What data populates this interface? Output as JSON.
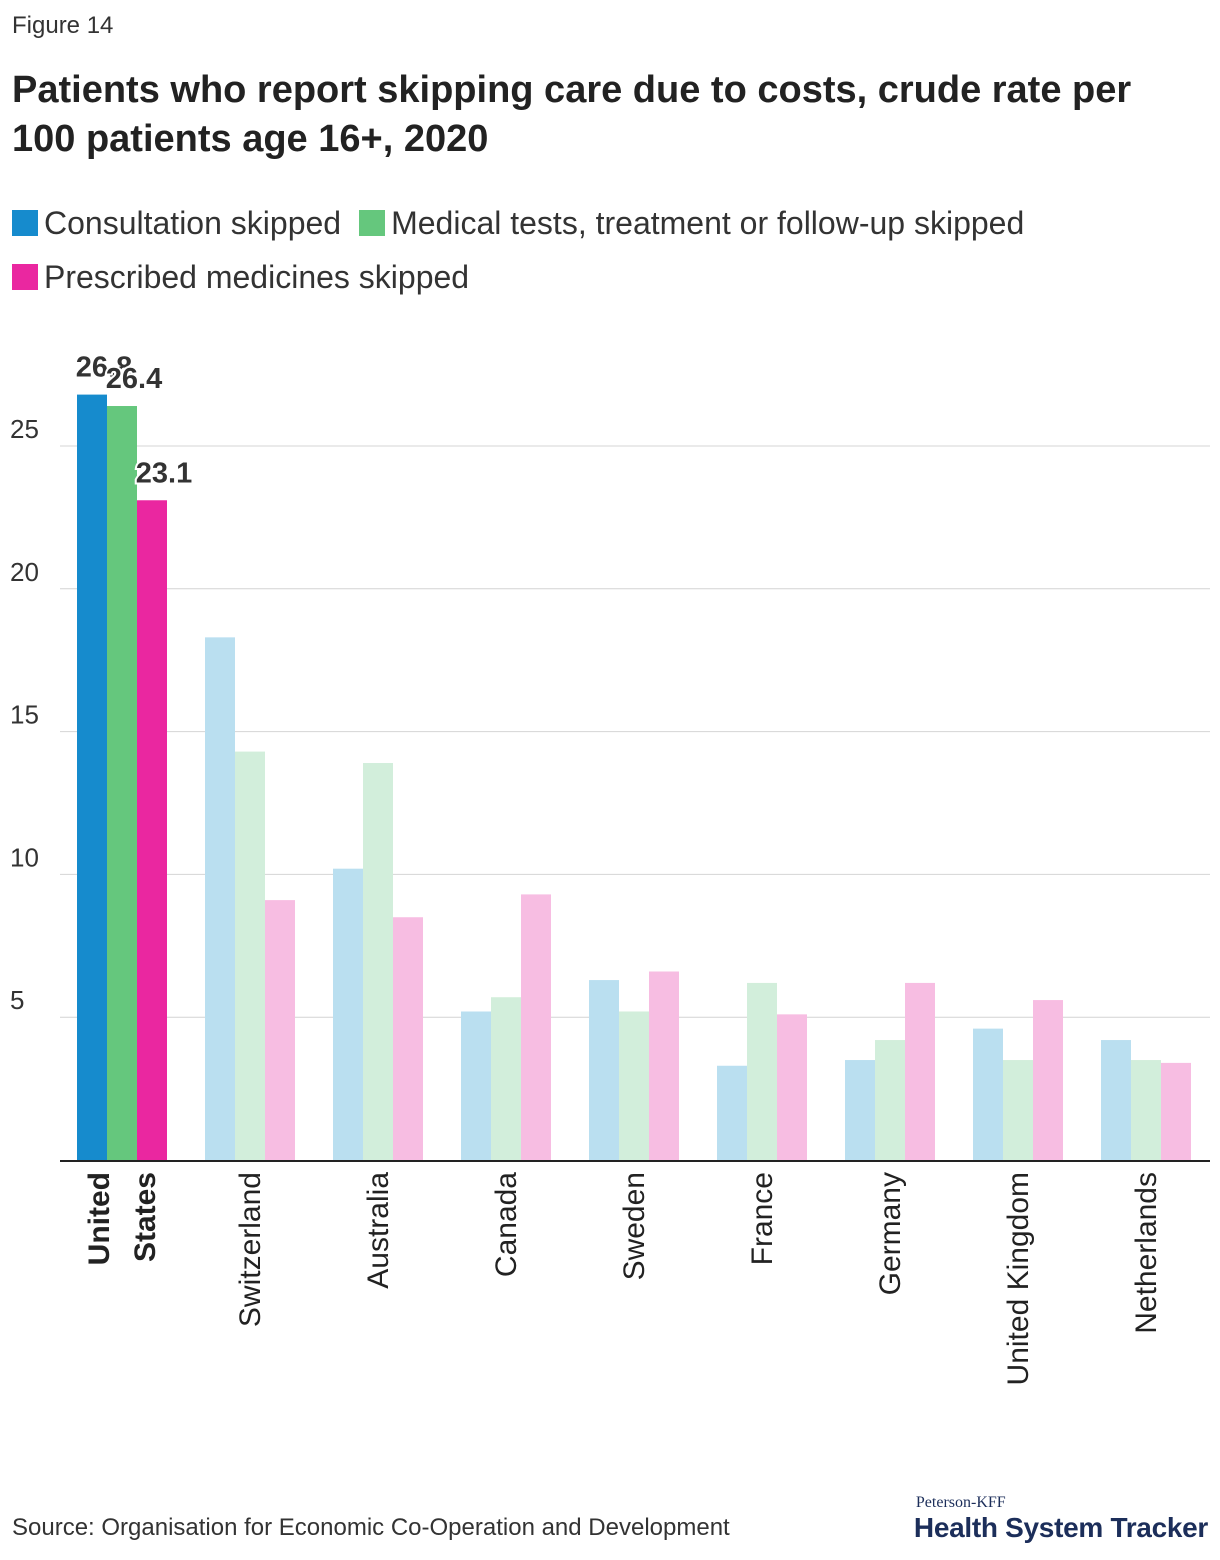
{
  "figure_label": "Figure 14",
  "title": "Patients who report skipping care due to costs, crude rate per 100 patients age 16+, 2020",
  "colors": {
    "consultation": "#168bcd",
    "tests": "#65c77d",
    "medicines": "#ea27a0",
    "consultation_faded": "#badff0",
    "tests_faded": "#d2eedb",
    "medicines_faded": "#f7bde2",
    "gridline": "#d4d4d4",
    "axis": "#222222"
  },
  "source": "Source: Organisation for Economic Co-Operation and Development",
  "logo": {
    "small": "Peterson-KFF",
    "big": "Health System Tracker"
  },
  "chart_data": {
    "type": "bar",
    "title": "Patients who report skipping care due to costs, crude rate per 100 patients age 16+, 2020",
    "xlabel": "",
    "ylabel": "",
    "ylim": [
      0,
      28
    ],
    "yticks": [
      5,
      10,
      15,
      20,
      25
    ],
    "grid": true,
    "legend_position": "top",
    "highlighted_category": "United States",
    "categories": [
      "United States",
      "Switzerland",
      "Australia",
      "Canada",
      "Sweden",
      "France",
      "Germany",
      "United Kingdom",
      "Netherlands"
    ],
    "series": [
      {
        "name": "Consultation skipped",
        "color_key": "consultation",
        "values": [
          26.8,
          18.3,
          10.2,
          5.2,
          6.3,
          3.3,
          3.5,
          4.6,
          4.2
        ]
      },
      {
        "name": "Medical tests, treatment or follow-up skipped",
        "color_key": "tests",
        "values": [
          26.4,
          14.3,
          13.9,
          5.7,
          5.2,
          6.2,
          4.2,
          3.5,
          3.5
        ]
      },
      {
        "name": "Prescribed medicines skipped",
        "color_key": "medicines",
        "values": [
          23.1,
          9.1,
          8.5,
          9.3,
          6.6,
          5.1,
          6.2,
          5.6,
          3.4
        ]
      }
    ],
    "data_labels": [
      {
        "category": "United States",
        "series": "Consultation skipped",
        "text": "26.8"
      },
      {
        "category": "United States",
        "series": "Medical tests, treatment or follow-up skipped",
        "text": "26.4"
      },
      {
        "category": "United States",
        "series": "Prescribed medicines skipped",
        "text": "23.1"
      }
    ]
  }
}
